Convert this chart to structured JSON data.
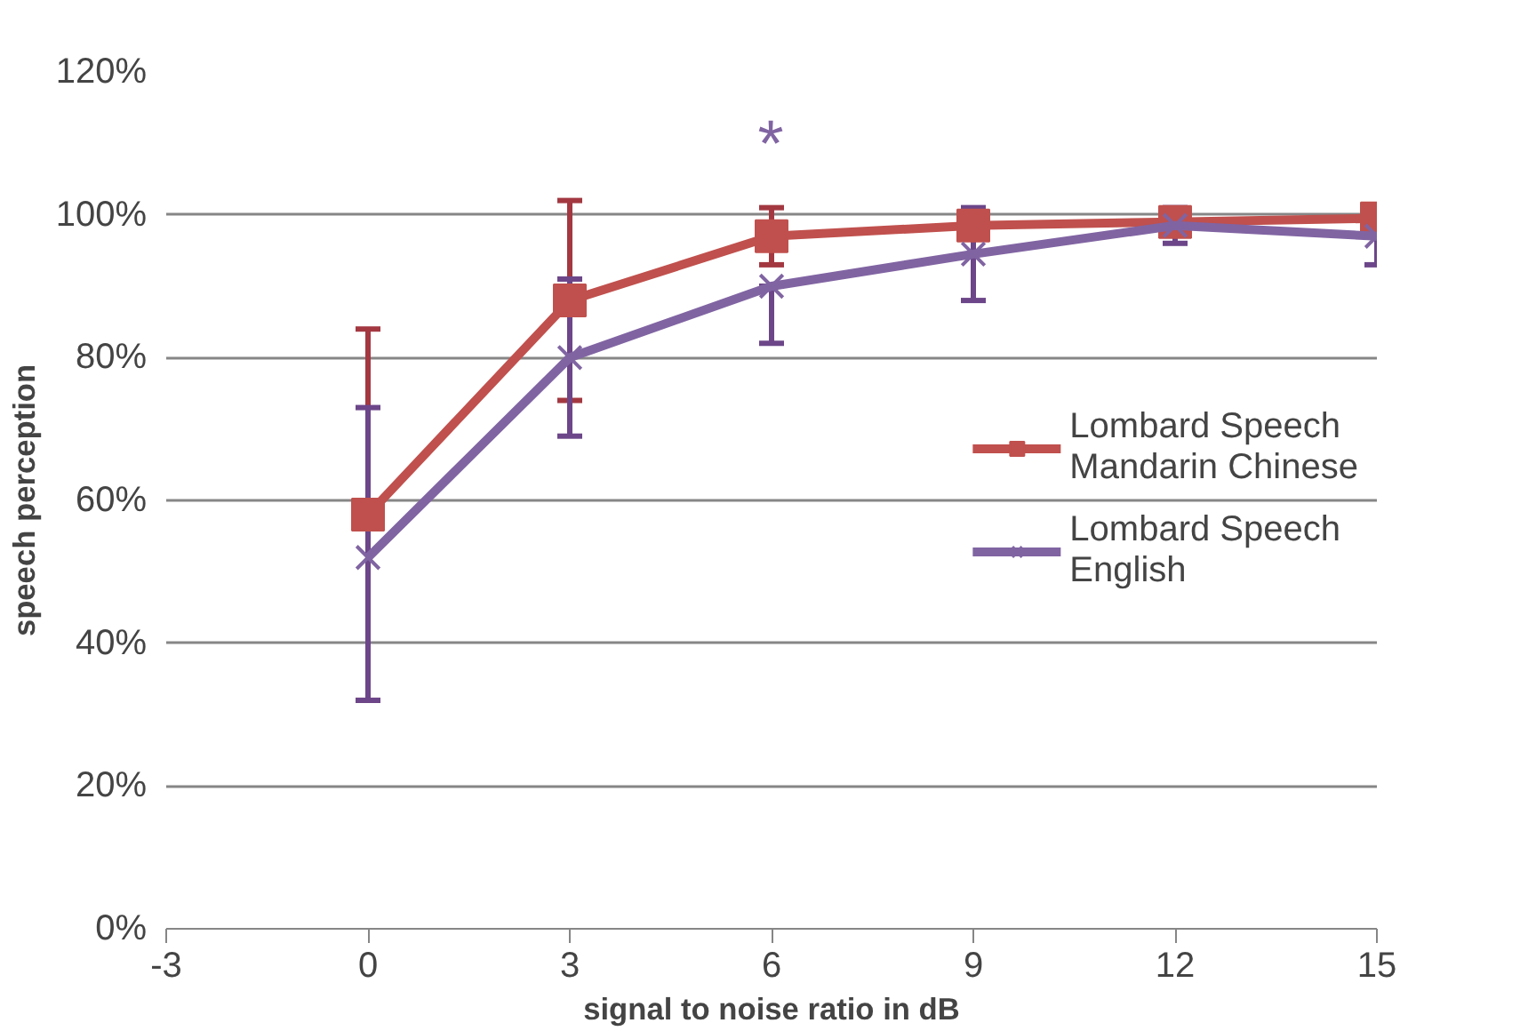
{
  "chart_data": {
    "type": "line",
    "xlabel": "signal to noise ratio in dB",
    "ylabel": "speech perception",
    "x": [
      0,
      3,
      6,
      9,
      12,
      15
    ],
    "series": [
      {
        "name": "Lombard Speech Mandarin Chinese",
        "color": "#c0504d",
        "marker": "square",
        "values": [
          58,
          88,
          97,
          98.5,
          99,
          99.5
        ],
        "errors": [
          [
            32,
            84
          ],
          [
            74,
            102
          ],
          [
            93,
            101
          ],
          null,
          null,
          null
        ]
      },
      {
        "name": "Lombard Speech English",
        "color": "#8064a2",
        "marker": "x",
        "values": [
          52,
          80,
          90,
          94.5,
          98.5,
          97
        ],
        "errors": [
          [
            32,
            73
          ],
          [
            69,
            91
          ],
          [
            82,
            90
          ],
          [
            88,
            101
          ],
          [
            96,
            101
          ],
          [
            93,
            101
          ]
        ]
      }
    ],
    "xlim": [
      -3,
      15
    ],
    "xticks": [
      -3,
      0,
      3,
      6,
      9,
      12,
      15
    ],
    "ylim": [
      0,
      120
    ],
    "yticks": [
      {
        "value": 0,
        "label": "0%"
      },
      {
        "value": 20,
        "label": "20%"
      },
      {
        "value": 40,
        "label": "40%"
      },
      {
        "value": 60,
        "label": "60%"
      },
      {
        "value": 80,
        "label": "80%"
      },
      {
        "value": 100,
        "label": "100%"
      },
      {
        "value": 120,
        "label": "120%"
      }
    ],
    "annotations": [
      "*"
    ],
    "grid": "y",
    "legend": "right",
    "line_style": "solid"
  }
}
